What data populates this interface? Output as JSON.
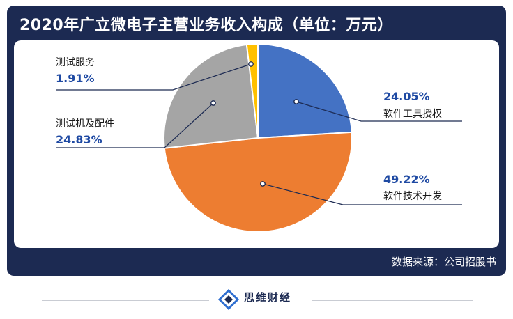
{
  "title": "2020年广立微电子主营业务收入构成（单位：万元）",
  "source": "数据来源：公司招股书",
  "brand": {
    "name": "思维财经"
  },
  "colors": {
    "frame": "#1c2a52",
    "pct_label": "#1f4aa3"
  },
  "chart_data": {
    "type": "pie",
    "title": "2020年广立微电子主营业务收入构成（单位：万元）",
    "slices": [
      {
        "label": "软件工具授权",
        "value": 24.05,
        "pct_text": "24.05%",
        "color": "#4472c4"
      },
      {
        "label": "软件技术开发",
        "value": 49.22,
        "pct_text": "49.22%",
        "color": "#ed7d31"
      },
      {
        "label": "测试机及配件",
        "value": 24.83,
        "pct_text": "24.83%",
        "color": "#a5a5a5"
      },
      {
        "label": "测试服务",
        "value": 1.91,
        "pct_text": "1.91%",
        "color": "#ffc000"
      }
    ],
    "start_angle_deg": 0,
    "direction": "clockwise"
  }
}
